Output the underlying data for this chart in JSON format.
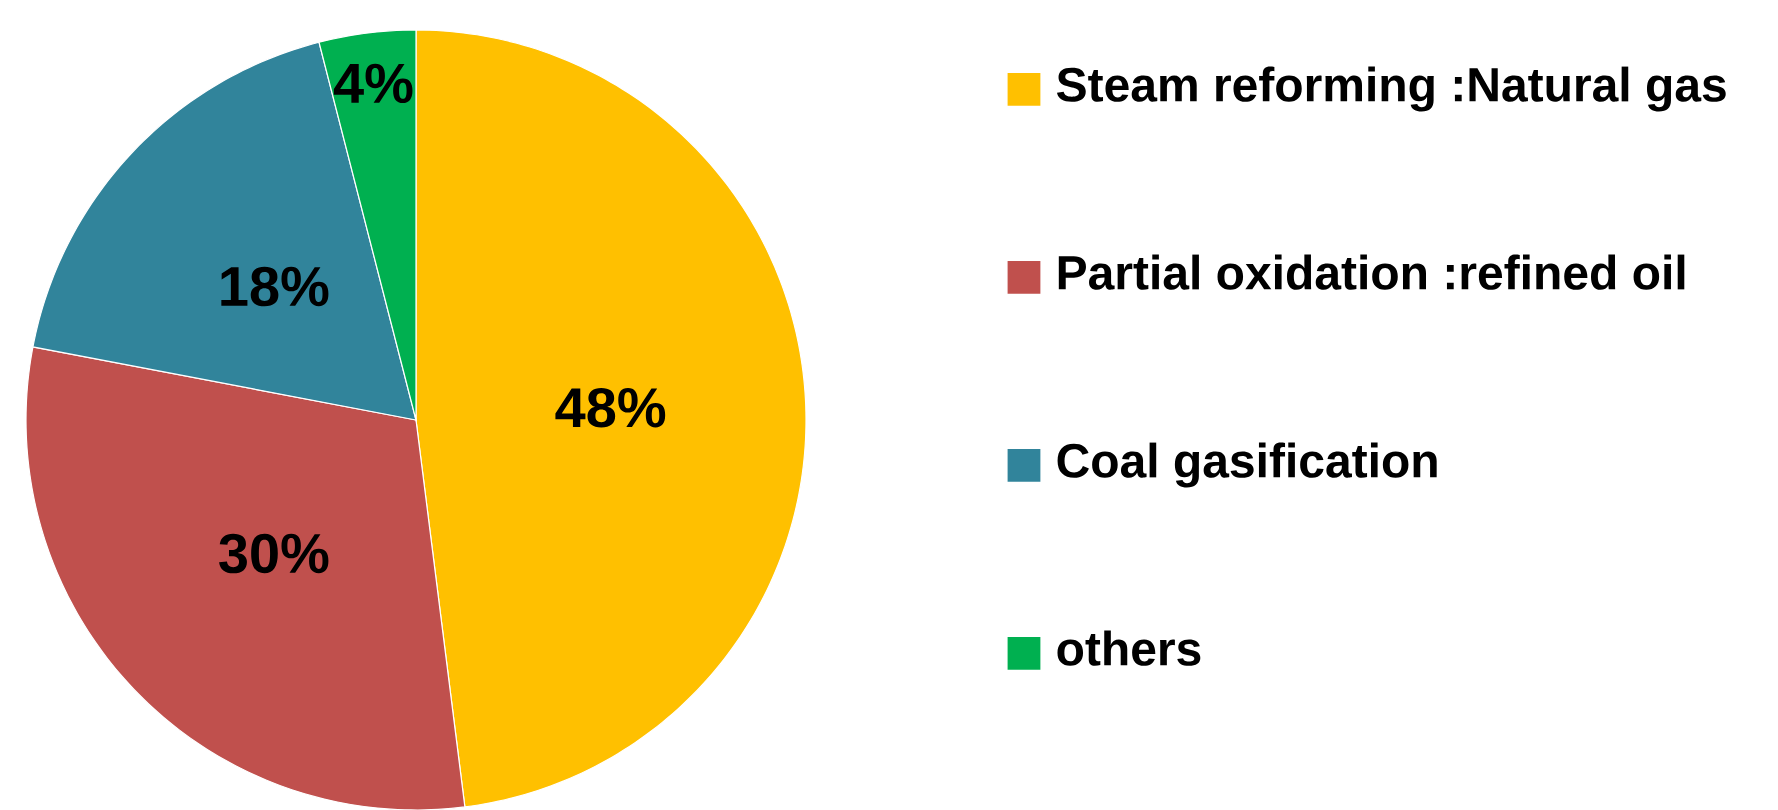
{
  "chart_data": {
    "type": "pie",
    "categories": [
      "Steam reforming :Natural gas",
      "Partial oxidation :refined oil",
      "Coal gasification",
      "others"
    ],
    "values": [
      48,
      30,
      18,
      4
    ],
    "colors": [
      "#ffc000",
      "#c0504d",
      "#31849b",
      "#00b050"
    ],
    "value_labels": [
      "48%",
      "30%",
      "18%",
      "4%"
    ],
    "legend": "right"
  }
}
